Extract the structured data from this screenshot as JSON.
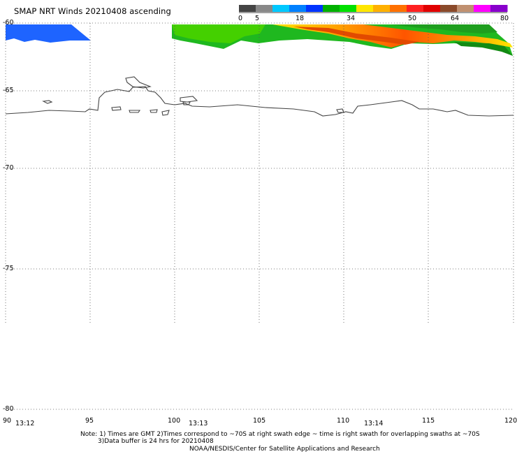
{
  "header": {
    "title": "SMAP NRT Winds 20210408 ascending"
  },
  "colorbar": {
    "labels": [
      "0",
      "5",
      "18",
      "34",
      "50",
      "64",
      "80"
    ],
    "colors": [
      "#444444",
      "#888888",
      "#00c8ff",
      "#0080ff",
      "#0033ff",
      "#00b000",
      "#00e000",
      "#ffe600",
      "#ffb000",
      "#ff7000",
      "#ff2020",
      "#e00000",
      "#8a4a2a",
      "#c09070",
      "#ff00ff",
      "#8800cc"
    ]
  },
  "map": {
    "lat_labels": [
      "-60",
      "-65",
      "-70",
      "-75",
      "-80"
    ],
    "lon_labels": [
      "90",
      "95",
      "100",
      "105",
      "110",
      "115",
      "120"
    ],
    "time_labels": [
      "13:12",
      "13:13",
      "13:14"
    ],
    "colors": {
      "grid": "#555555",
      "coast": "#444444"
    }
  },
  "footer": {
    "note1": "Note: 1) Times are GMT 2)Times correspond to ~70S at right swath edge ~ time is right swath for overlapping swaths at ~70S",
    "note2": "3)Data buffer is 24 hrs for 20210408",
    "credit": "NOAA/NESDIS/Center for Satellite Applications and Research"
  }
}
